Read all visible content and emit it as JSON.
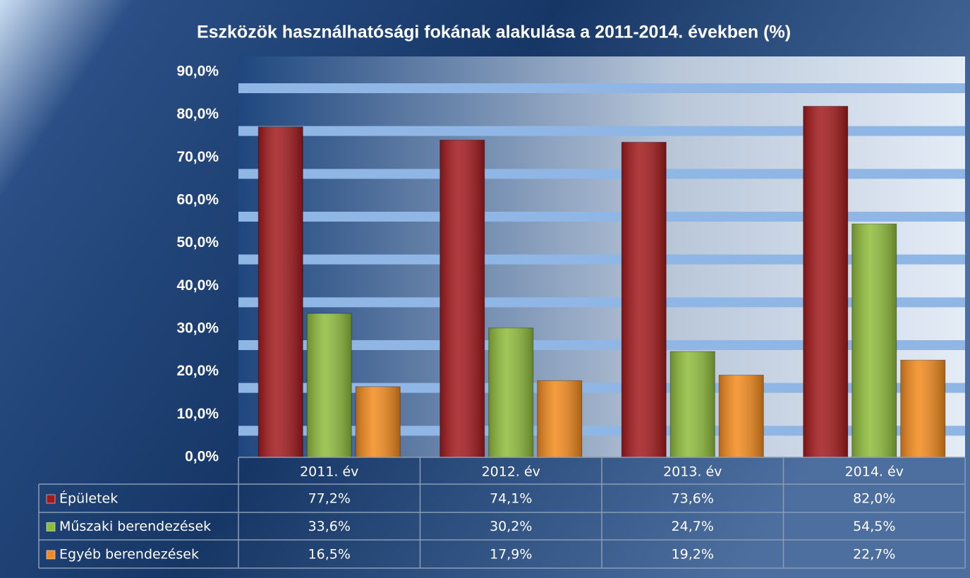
{
  "chart_data": {
    "type": "bar",
    "title": "Eszközök használhatósági fokának alakulása a 2011-2014. években (%)",
    "categories": [
      "2011. év",
      "2012. év",
      "2013. év",
      "2014. év"
    ],
    "series": [
      {
        "name": "Épületek",
        "color": "#a3191b",
        "values": [
          77.2,
          74.1,
          73.6,
          82.0
        ],
        "value_labels": [
          "77,2%",
          "74,1%",
          "73,6%",
          "82,0%"
        ]
      },
      {
        "name": "Műszaki berendezések",
        "color": "#8fbb3b",
        "values": [
          33.6,
          30.2,
          24.7,
          54.5
        ],
        "value_labels": [
          "33,6%",
          "30,2%",
          "24,7%",
          "54,5%"
        ]
      },
      {
        "name": "Egyéb berendezések",
        "color": "#f28a1d",
        "values": [
          16.5,
          17.9,
          19.2,
          22.7
        ],
        "value_labels": [
          "16,5%",
          "17,9%",
          "19,2%",
          "22,7%"
        ]
      }
    ],
    "ylim": [
      0,
      90
    ],
    "yticks": [
      {
        "value": 0,
        "label": "0,0%"
      },
      {
        "value": 10,
        "label": "10,0%"
      },
      {
        "value": 20,
        "label": "20,0%"
      },
      {
        "value": 30,
        "label": "30,0%"
      },
      {
        "value": 40,
        "label": "40,0%"
      },
      {
        "value": 50,
        "label": "50,0%"
      },
      {
        "value": 60,
        "label": "60,0%"
      },
      {
        "value": 70,
        "label": "70,0%"
      },
      {
        "value": 80,
        "label": "80,0%"
      },
      {
        "value": 90,
        "label": "90,0%"
      }
    ],
    "grid": true
  }
}
